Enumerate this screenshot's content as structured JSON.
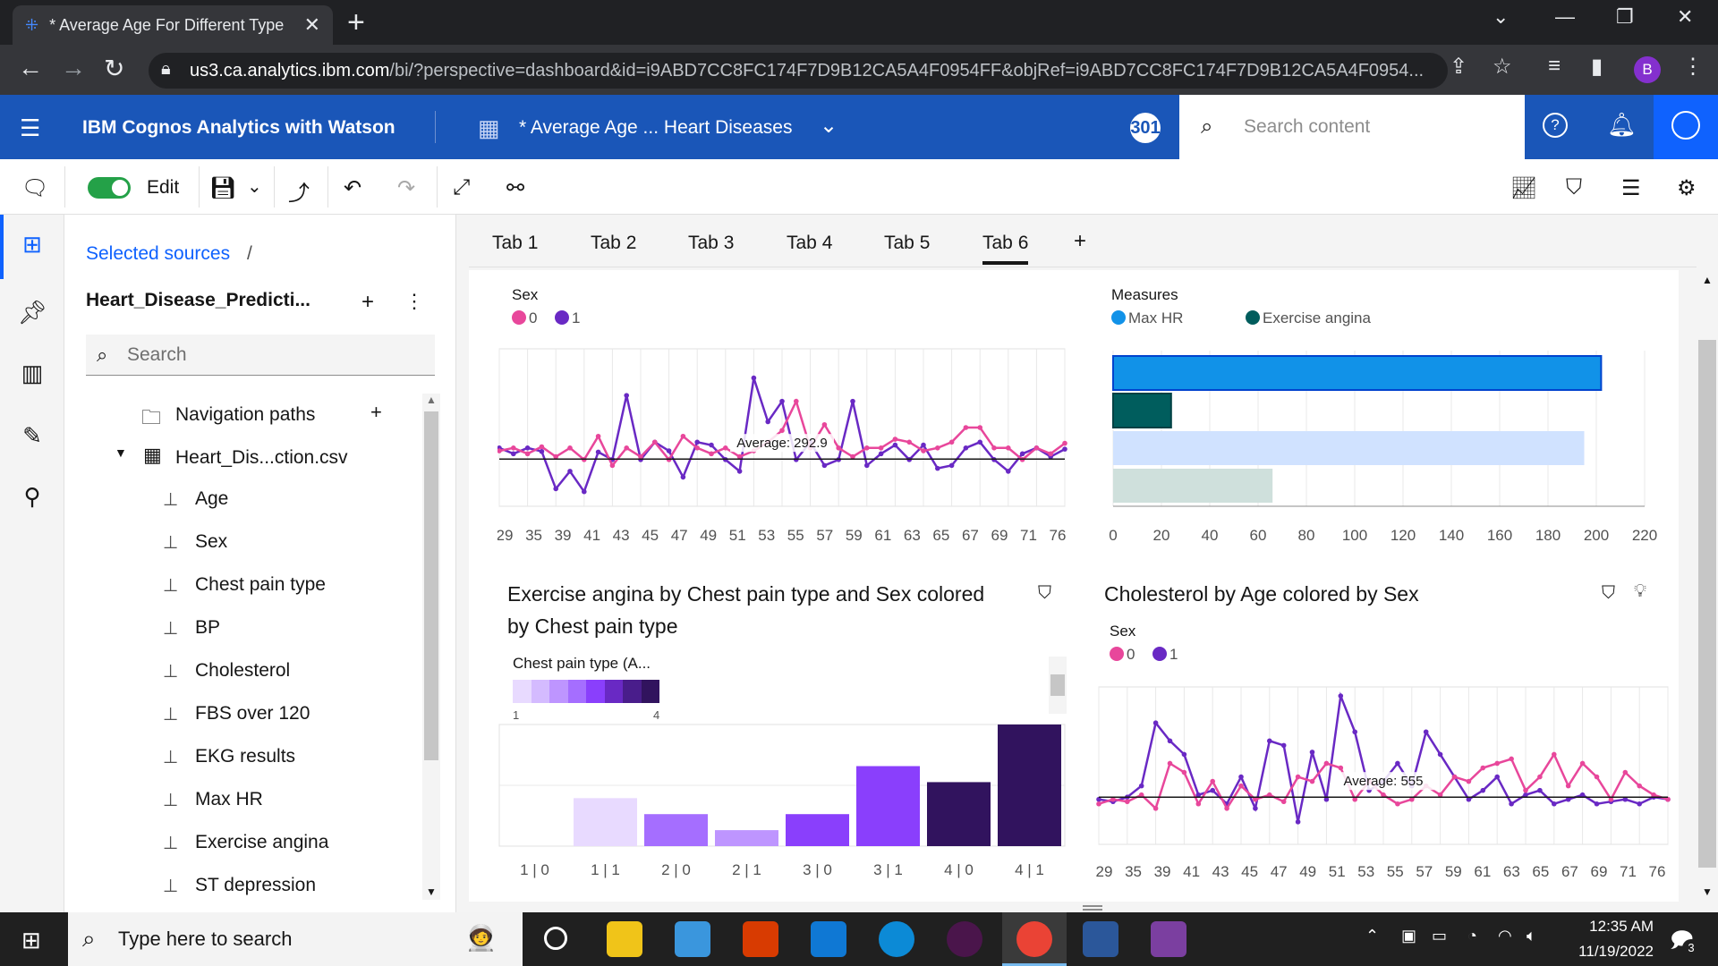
{
  "browser": {
    "tab_title": "* Average Age For Different Type",
    "url_host": "us3.ca.analytics.ibm.com",
    "url_rest": "/bi/?perspective=dashboard&id=i9ABD7CC8FC174F7D9B12CA5A4F0954FF&objRef=i9ABD7CC8FC174F7D9B12CA5A4F0954...",
    "profile_initial": "B"
  },
  "app": {
    "name": "IBM Cognos Analytics with Watson",
    "document": "* Average Age ... Heart Diseases",
    "badge": "301",
    "search_placeholder": "Search content"
  },
  "toolbar": {
    "edit_label": "Edit"
  },
  "sources": {
    "breadcrumb": "Selected sources",
    "breadcrumb_sep": "/",
    "dataset": "Heart_Disease_Predicti...",
    "search_placeholder": "Search",
    "nav_paths": "Navigation paths",
    "file": "Heart_Dis...ction.csv",
    "fields": [
      "Age",
      "Sex",
      "Chest pain type",
      "BP",
      "Cholesterol",
      "FBS over 120",
      "EKG results",
      "Max HR",
      "Exercise angina",
      "ST depression"
    ]
  },
  "tabs": [
    "Tab 1",
    "Tab 2",
    "Tab 3",
    "Tab 4",
    "Tab 5",
    "Tab 6"
  ],
  "tab_add": "+",
  "colors": {
    "sex0": "#e8479b",
    "sex1": "#6929c4",
    "maxhr": "#1192e8",
    "angina": "#005d5d",
    "maxhr_light": "#d0e2ff",
    "angina_light": "#cfe0dc"
  },
  "chart_data": [
    {
      "id": "line1",
      "type": "line",
      "legend_title": "Sex",
      "legend": [
        "0",
        "1"
      ],
      "x_tick_labels": [
        "29",
        "35",
        "39",
        "41",
        "43",
        "45",
        "47",
        "49",
        "51",
        "53",
        "55",
        "57",
        "59",
        "61",
        "63",
        "65",
        "67",
        "69",
        "71",
        "76"
      ],
      "average_label": "Average: 292.9",
      "series": [
        {
          "name": "1",
          "values": [
            250,
            240,
            250,
            244,
            180,
            210,
            175,
            243,
            230,
            340,
            230,
            260,
            245,
            200,
            260,
            255,
            230,
            210,
            370,
            295,
            330,
            230,
            260,
            220,
            230,
            330,
            220,
            240,
            255,
            230,
            255,
            215,
            220,
            250,
            260,
            230,
            210,
            240,
            250,
            235,
            248
          ]
        },
        {
          "name": "0",
          "values": [
            245,
            250,
            240,
            252,
            235,
            250,
            230,
            270,
            220,
            250,
            235,
            260,
            230,
            270,
            250,
            240,
            250,
            235,
            245,
            260,
            280,
            330,
            250,
            290,
            250,
            235,
            250,
            250,
            265,
            260,
            245,
            250,
            260,
            285,
            285,
            250,
            250,
            230,
            250,
            240,
            258
          ]
        }
      ],
      "y_range": [
        150,
        420
      ]
    },
    {
      "id": "bar1",
      "type": "bar",
      "orientation": "horizontal",
      "legend_title": "Measures",
      "legend": [
        "Max HR",
        "Exercise angina"
      ],
      "x_ticks": [
        0,
        20,
        40,
        60,
        80,
        100,
        120,
        140,
        160,
        180,
        200,
        220
      ],
      "x_range": [
        0,
        220
      ],
      "bars": [
        {
          "name": "Max HR",
          "value": 202
        },
        {
          "name": "Exercise angina",
          "value": 24
        },
        {
          "name": "Max HR",
          "value": 195
        },
        {
          "name": "Exercise angina",
          "value": 66
        }
      ]
    },
    {
      "id": "bar2",
      "type": "bar",
      "title": "Exercise angina by Chest pain type and Sex colored by Chest pain type",
      "legend_title": "Chest pain type (A...",
      "legend_min": "1",
      "legend_max": "4",
      "categories": [
        "1 | 0",
        "1 | 1",
        "2 | 0",
        "2 | 1",
        "3 | 0",
        "3 | 1",
        "4 | 0",
        "4 | 1"
      ],
      "values": [
        0,
        30,
        20,
        10,
        20,
        50,
        40,
        76
      ],
      "y_range": [
        0,
        76
      ]
    },
    {
      "id": "line2",
      "type": "line",
      "title": "Cholesterol by Age colored by Sex",
      "legend_title": "Sex",
      "legend": [
        "0",
        "1"
      ],
      "x_tick_labels": [
        "29",
        "35",
        "39",
        "41",
        "43",
        "45",
        "47",
        "49",
        "51",
        "53",
        "55",
        "57",
        "59",
        "61",
        "63",
        "65",
        "67",
        "69",
        "71",
        "76"
      ],
      "average_label": "Average: 555",
      "series": [
        {
          "name": "1",
          "values": [
            250,
            245,
            255,
            280,
            420,
            380,
            350,
            260,
            270,
            240,
            300,
            230,
            380,
            370,
            200,
            355,
            250,
            480,
            400,
            270,
            290,
            330,
            280,
            400,
            350,
            300,
            250,
            270,
            300,
            240,
            260,
            270,
            240,
            250,
            260,
            240,
            245,
            250,
            240,
            255,
            250
          ]
        },
        {
          "name": "0",
          "values": [
            240,
            250,
            245,
            260,
            230,
            330,
            310,
            240,
            290,
            230,
            280,
            250,
            260,
            245,
            300,
            290,
            330,
            320,
            250,
            290,
            260,
            240,
            250,
            280,
            260,
            300,
            290,
            320,
            330,
            340,
            270,
            300,
            350,
            280,
            330,
            300,
            250,
            310,
            280,
            260,
            250
          ]
        }
      ],
      "y_range": [
        150,
        500
      ]
    }
  ],
  "taskbar": {
    "search_placeholder": "Type here to search",
    "time": "12:35 AM",
    "date": "11/19/2022",
    "notif": "3"
  }
}
